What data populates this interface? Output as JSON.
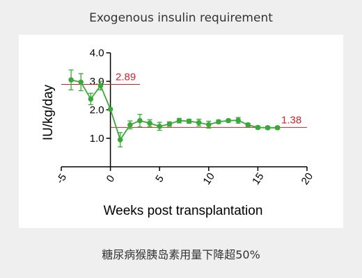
{
  "title": "Exogenous insulin requirement",
  "caption": "糖尿病猴胰岛素用量下降超50%",
  "chart_data": {
    "type": "line",
    "xlabel": "Weeks post transplantation",
    "ylabel": "IU/kg/day",
    "xlim": [
      -5,
      20
    ],
    "ylim": [
      0,
      4.0
    ],
    "x_ticks": [
      "-5",
      "0",
      "5",
      "10",
      "15",
      "20"
    ],
    "y_ticks": [
      "1.0",
      "2.0",
      "3.0",
      "4.0"
    ],
    "series": [
      {
        "color": "#3aa83a",
        "points": [
          {
            "x": -4,
            "y": 3.05,
            "err": 0.35
          },
          {
            "x": -3,
            "y": 2.97,
            "err": 0.3
          },
          {
            "x": -2,
            "y": 2.38,
            "err": 0.2
          },
          {
            "x": -1,
            "y": 2.85,
            "err": 0.15
          },
          {
            "x": 0,
            "y": 2.02,
            "err": 0.0
          },
          {
            "x": 1,
            "y": 0.95,
            "err": 0.25
          },
          {
            "x": 2,
            "y": 1.47,
            "err": 0.14
          },
          {
            "x": 3,
            "y": 1.62,
            "err": 0.22
          },
          {
            "x": 4,
            "y": 1.53,
            "err": 0.12
          },
          {
            "x": 5,
            "y": 1.42,
            "err": 0.14
          },
          {
            "x": 6,
            "y": 1.5,
            "err": 0.08
          },
          {
            "x": 7,
            "y": 1.62,
            "err": 0.08
          },
          {
            "x": 8,
            "y": 1.6,
            "err": 0.07
          },
          {
            "x": 9,
            "y": 1.55,
            "err": 0.12
          },
          {
            "x": 10,
            "y": 1.48,
            "err": 0.12
          },
          {
            "x": 11,
            "y": 1.58,
            "err": 0.06
          },
          {
            "x": 12,
            "y": 1.62,
            "err": 0.05
          },
          {
            "x": 13,
            "y": 1.63,
            "err": 0.1
          },
          {
            "x": 14,
            "y": 1.47,
            "err": 0.06
          },
          {
            "x": 15,
            "y": 1.38,
            "err": 0.05
          },
          {
            "x": 16,
            "y": 1.37,
            "err": 0.05
          },
          {
            "x": 17,
            "y": 1.37,
            "err": 0.05
          }
        ]
      }
    ],
    "reference_lines": [
      {
        "label": "2.89",
        "y": 2.89,
        "x_start": -5,
        "x_end": 3,
        "color": "#c0282e"
      },
      {
        "label": "1.38",
        "y": 1.38,
        "x_start": 0,
        "x_end": 20,
        "color": "#c0282e"
      }
    ],
    "grid": false
  }
}
